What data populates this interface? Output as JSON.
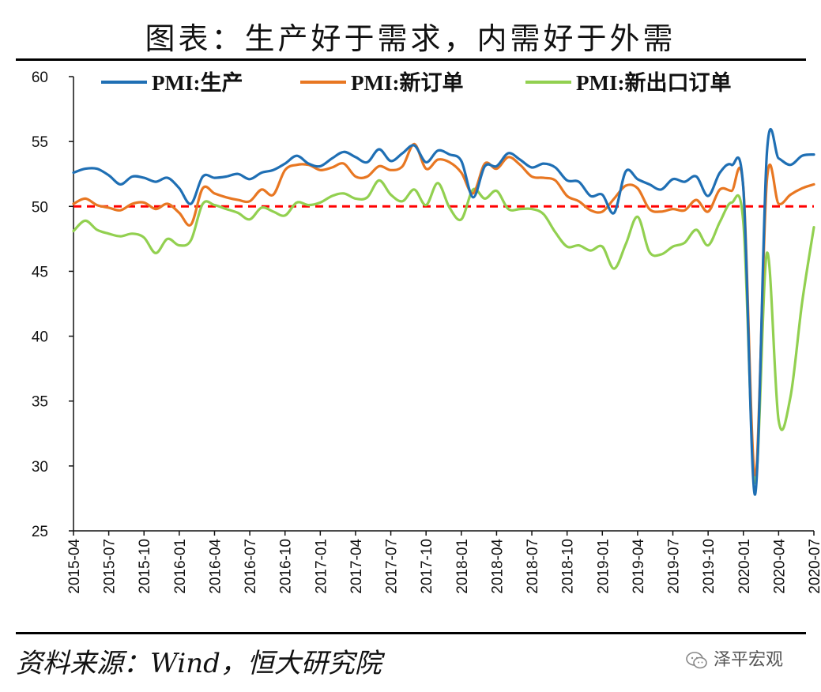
{
  "title": "图表：生产好于需求，内需好于外需",
  "source": "资料来源：Wind，恒大研究院",
  "watermark": "泽平宏观",
  "colors": {
    "production": "#1f6fb4",
    "new_orders": "#e87722",
    "new_export_orders": "#92d050",
    "reference": "#ff0000"
  },
  "chart_data": {
    "type": "line",
    "title": "图表：生产好于需求，内需好于外需",
    "ylim": [
      25,
      60
    ],
    "yticks": [
      25,
      30,
      35,
      40,
      45,
      50,
      55,
      60
    ],
    "reference_line": 50,
    "legend_position": "top",
    "x": [
      "2015-04",
      "2015-05",
      "2015-06",
      "2015-07",
      "2015-08",
      "2015-09",
      "2015-10",
      "2015-11",
      "2015-12",
      "2016-01",
      "2016-02",
      "2016-03",
      "2016-04",
      "2016-05",
      "2016-06",
      "2016-07",
      "2016-08",
      "2016-09",
      "2016-10",
      "2016-11",
      "2016-12",
      "2017-01",
      "2017-02",
      "2017-03",
      "2017-04",
      "2017-05",
      "2017-06",
      "2017-07",
      "2017-08",
      "2017-09",
      "2017-10",
      "2017-11",
      "2017-12",
      "2018-01",
      "2018-02",
      "2018-03",
      "2018-04",
      "2018-05",
      "2018-06",
      "2018-07",
      "2018-08",
      "2018-09",
      "2018-10",
      "2018-11",
      "2018-12",
      "2019-01",
      "2019-02",
      "2019-03",
      "2019-04",
      "2019-05",
      "2019-06",
      "2019-07",
      "2019-08",
      "2019-09",
      "2019-10",
      "2019-11",
      "2019-12",
      "2020-01",
      "2020-02",
      "2020-03",
      "2020-04",
      "2020-05",
      "2020-06",
      "2020-07"
    ],
    "xtick_labels": [
      "2015-04",
      "2015-07",
      "2015-10",
      "2016-01",
      "2016-04",
      "2016-07",
      "2016-10",
      "2017-01",
      "2017-04",
      "2017-07",
      "2017-10",
      "2018-01",
      "2018-04",
      "2018-07",
      "2018-10",
      "2019-01",
      "2019-04",
      "2019-07",
      "2019-10",
      "2020-01",
      "2020-04",
      "2020-07"
    ],
    "series": [
      {
        "name": "PMI:生产",
        "key": "production",
        "values": [
          52.6,
          52.9,
          52.9,
          52.4,
          51.7,
          52.3,
          52.2,
          51.9,
          52.2,
          51.4,
          50.2,
          52.3,
          52.2,
          52.3,
          52.5,
          52.1,
          52.6,
          52.8,
          53.3,
          53.9,
          53.3,
          53.1,
          53.7,
          54.2,
          53.8,
          53.4,
          54.4,
          53.5,
          54.1,
          54.7,
          53.4,
          54.3,
          54.0,
          53.5,
          50.7,
          53.1,
          53.1,
          54.1,
          53.6,
          53.0,
          53.3,
          53.0,
          52.0,
          51.9,
          50.8,
          50.9,
          49.5,
          52.7,
          52.1,
          51.7,
          51.3,
          52.1,
          51.9,
          52.3,
          50.8,
          52.6,
          53.2,
          51.3,
          27.8,
          54.1,
          53.7,
          53.2,
          53.9,
          54.0
        ]
      },
      {
        "name": "PMI:新订单",
        "key": "new_orders",
        "values": [
          50.2,
          50.6,
          50.1,
          49.9,
          49.7,
          50.2,
          50.3,
          49.8,
          50.2,
          49.5,
          48.6,
          51.4,
          51.0,
          50.7,
          50.5,
          50.4,
          51.3,
          50.9,
          52.8,
          53.2,
          53.2,
          52.8,
          53.0,
          53.3,
          52.3,
          52.3,
          53.1,
          52.8,
          53.1,
          54.8,
          52.9,
          53.6,
          53.4,
          52.6,
          51.0,
          53.3,
          52.9,
          53.8,
          53.2,
          52.3,
          52.2,
          52.0,
          50.8,
          50.4,
          49.7,
          49.6,
          50.6,
          51.6,
          51.4,
          49.8,
          49.6,
          49.8,
          49.7,
          50.5,
          49.6,
          51.3,
          51.2,
          51.4,
          29.3,
          52.0,
          50.2,
          50.9,
          51.4,
          51.7
        ]
      },
      {
        "name": "PMI:新出口订单",
        "key": "new_export_orders",
        "values": [
          48.1,
          48.9,
          48.2,
          47.9,
          47.7,
          47.9,
          47.6,
          46.4,
          47.5,
          47.0,
          47.4,
          50.2,
          50.1,
          49.8,
          49.5,
          49.0,
          49.9,
          49.6,
          49.3,
          50.3,
          50.1,
          50.3,
          50.8,
          51.0,
          50.6,
          50.7,
          52.0,
          50.9,
          50.4,
          51.3,
          50.1,
          51.8,
          49.9,
          49.0,
          51.3,
          50.6,
          51.2,
          49.8,
          49.8,
          49.8,
          49.4,
          48.0,
          46.9,
          47.0,
          46.6,
          46.9,
          45.2,
          47.1,
          49.2,
          46.5,
          46.3,
          46.9,
          47.2,
          48.2,
          47.0,
          48.8,
          50.3,
          48.7,
          28.7,
          46.4,
          33.5,
          35.3,
          42.6,
          48.4
        ]
      }
    ]
  }
}
